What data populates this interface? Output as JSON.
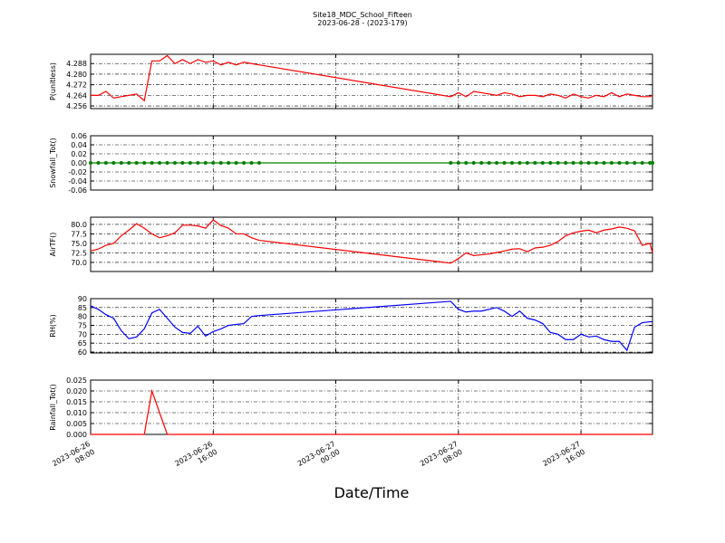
{
  "title": "Site18_MDC_School_Fifteen",
  "subtitle": "2023-06-28 - (2023-179)",
  "xlabel": "Date/Time",
  "xlim": [
    "2023-06-26 08:00",
    "2023-06-27 20:40"
  ],
  "xticks": [
    {
      "value": "2023-06-26 08:00",
      "label": "2023-06-26\n08:00"
    },
    {
      "value": "2023-06-26 16:00",
      "label": "2023-06-26\n16:00"
    },
    {
      "value": "2023-06-27 00:00",
      "label": "2023-06-27\n00:00"
    },
    {
      "value": "2023-06-27 08:00",
      "label": "2023-06-27\n08:00"
    },
    {
      "value": "2023-06-27 16:00",
      "label": "2023-06-27\n16:00"
    }
  ],
  "grid": true,
  "x": [
    "2023-06-26 08:00",
    "2023-06-26 08:30",
    "2023-06-26 09:00",
    "2023-06-26 09:30",
    "2023-06-26 10:00",
    "2023-06-26 10:30",
    "2023-06-26 11:00",
    "2023-06-26 11:30",
    "2023-06-26 12:00",
    "2023-06-26 12:30",
    "2023-06-26 13:00",
    "2023-06-26 13:30",
    "2023-06-26 14:00",
    "2023-06-26 14:30",
    "2023-06-26 15:00",
    "2023-06-26 15:30",
    "2023-06-26 16:00",
    "2023-06-26 16:30",
    "2023-06-26 17:00",
    "2023-06-26 17:30",
    "2023-06-26 18:00",
    "2023-06-26 18:30",
    "2023-06-26 19:00",
    "2023-06-27 07:30",
    "2023-06-27 08:00",
    "2023-06-27 08:30",
    "2023-06-27 09:00",
    "2023-06-27 09:30",
    "2023-06-27 10:00",
    "2023-06-27 10:30",
    "2023-06-27 11:00",
    "2023-06-27 11:30",
    "2023-06-27 12:00",
    "2023-06-27 12:30",
    "2023-06-27 13:00",
    "2023-06-27 13:30",
    "2023-06-27 14:00",
    "2023-06-27 14:30",
    "2023-06-27 15:00",
    "2023-06-27 15:30",
    "2023-06-27 16:00",
    "2023-06-27 16:30",
    "2023-06-27 17:00",
    "2023-06-27 17:30",
    "2023-06-27 18:00",
    "2023-06-27 18:30",
    "2023-06-27 19:00",
    "2023-06-27 19:30",
    "2023-06-27 20:00",
    "2023-06-27 20:30",
    "2023-06-27 20:40"
  ],
  "chart_data": [
    {
      "type": "line",
      "ylabel": "P(unitless)",
      "ylim": [
        4.254,
        4.295
      ],
      "yticks": [
        4.256,
        4.264,
        4.272,
        {
          "value": 4.28,
          "label": "4.280"
        },
        4.288
      ],
      "series": [
        {
          "color": "#ff0000",
          "markers": false,
          "values": [
            4.264,
            4.264,
            4.267,
            4.262,
            4.263,
            4.264,
            4.265,
            4.26,
            4.29,
            4.29,
            4.294,
            4.288,
            4.291,
            4.288,
            4.291,
            4.289,
            4.29,
            4.287,
            4.289,
            4.287,
            4.289,
            4.288,
            4.287,
            4.263,
            4.266,
            4.263,
            4.267,
            4.266,
            4.265,
            4.264,
            4.266,
            4.265,
            4.263,
            4.264,
            4.264,
            4.263,
            4.265,
            4.264,
            4.262,
            4.265,
            4.263,
            4.262,
            4.264,
            4.263,
            4.266,
            4.263,
            4.265,
            4.264,
            4.263,
            4.263,
            4.264
          ]
        }
      ]
    },
    {
      "type": "line",
      "ylabel": "Snowfall_Tot()",
      "ylim": [
        -0.06,
        0.06
      ],
      "yticks": [
        -0.06,
        -0.04,
        -0.02,
        {
          "value": 0,
          "label": "0.00"
        },
        0.02,
        0.04,
        0.06
      ],
      "series": [
        {
          "color": "#008000",
          "markers": true,
          "values": [
            0,
            0,
            0,
            0,
            0,
            0,
            0,
            0,
            0,
            0,
            0,
            0,
            0,
            0,
            0,
            0,
            0,
            0,
            0,
            0,
            0,
            0,
            0,
            0,
            0,
            0,
            0,
            0,
            0,
            0,
            0,
            0,
            0,
            0,
            0,
            0,
            0,
            0,
            0,
            0,
            0,
            0,
            0,
            0,
            0,
            0,
            0,
            0,
            0,
            0,
            0
          ]
        }
      ]
    },
    {
      "type": "line",
      "ylabel": "AirTF()",
      "ylim": [
        67.6,
        81.9
      ],
      "yticks": [
        {
          "value": 70,
          "label": "70.0"
        },
        72.5,
        {
          "value": 75,
          "label": "75.0"
        },
        77.5,
        {
          "value": 80,
          "label": "80.0"
        }
      ],
      "series": [
        {
          "color": "#ff0000",
          "markers": false,
          "values": [
            73,
            73.5,
            74.5,
            75,
            77,
            78.5,
            80.2,
            79,
            77.5,
            76.5,
            77,
            77.8,
            79.8,
            79.8,
            79.6,
            79,
            81.2,
            79.7,
            79,
            77.5,
            77.5,
            76.5,
            75.8,
            69.8,
            71,
            72.5,
            71.8,
            72,
            72.2,
            72.6,
            73,
            73.5,
            73.6,
            72.8,
            73.8,
            74,
            74.5,
            75.5,
            77,
            77.8,
            78.2,
            78.5,
            77.8,
            78.5,
            78.8,
            79.3,
            79,
            78.3,
            74.5,
            75,
            72.5
          ]
        }
      ]
    },
    {
      "type": "line",
      "ylabel": "RH(%)",
      "ylim": [
        59.5,
        90
      ],
      "yticks": [
        60,
        65,
        70,
        75,
        80,
        85,
        90
      ],
      "series": [
        {
          "color": "#0000ff",
          "markers": false,
          "values": [
            86,
            84,
            81,
            79,
            72,
            67.5,
            68.5,
            73,
            82,
            84,
            79,
            74,
            71,
            70.5,
            74.5,
            69,
            71.5,
            73,
            75,
            75.5,
            76,
            80,
            80.5,
            88.5,
            84,
            82.5,
            83,
            83,
            84,
            85,
            83,
            80,
            83,
            79,
            78,
            76,
            71,
            70,
            67,
            67,
            70,
            68.5,
            69,
            67,
            66,
            66,
            61,
            74,
            76.5,
            77,
            77
          ]
        }
      ]
    },
    {
      "type": "line",
      "ylabel": "Rainfall_Tot()",
      "ylim": [
        0,
        0.025
      ],
      "yticks": [
        {
          "value": 0,
          "label": "0.000"
        },
        0.005,
        {
          "value": 0.01,
          "label": "0.010"
        },
        0.015,
        {
          "value": 0.02,
          "label": "0.020"
        },
        0.025
      ],
      "series": [
        {
          "color": "#ff0000",
          "markers": false,
          "values": [
            0,
            0,
            0,
            0,
            0,
            0,
            0,
            0,
            0.02,
            0.01,
            0,
            0,
            0,
            0,
            0,
            0,
            0,
            0,
            0,
            0,
            0,
            0,
            0,
            0,
            0,
            0,
            0,
            0,
            0,
            0,
            0,
            0,
            0,
            0,
            0,
            0,
            0,
            0,
            0,
            0,
            0,
            0,
            0,
            0,
            0,
            0,
            0,
            0,
            0,
            0,
            0
          ]
        }
      ]
    }
  ]
}
